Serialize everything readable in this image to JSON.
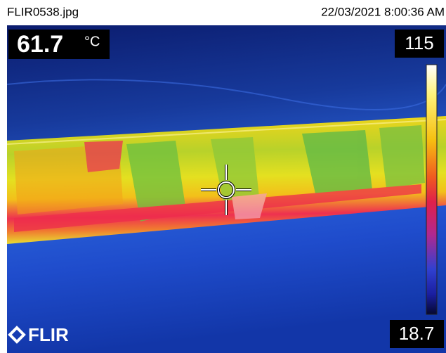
{
  "header": {
    "filename": "FLIR0538.jpg",
    "timestamp": "22/03/2021 8:00:36 AM"
  },
  "readout": {
    "value": 61.7,
    "unit": "°C"
  },
  "scale": {
    "max": 115,
    "min": 18.7
  },
  "logo": "FLIR"
}
